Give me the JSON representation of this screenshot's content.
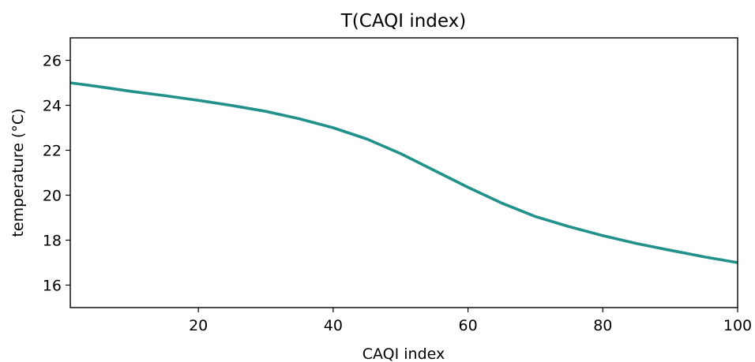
{
  "chart_data": {
    "type": "line",
    "title": "T(CAQI index)",
    "xlabel": "CAQI index",
    "ylabel": "temperature (°C)",
    "xlim": [
      1,
      100
    ],
    "ylim": [
      15,
      27
    ],
    "xticks": [
      20,
      40,
      60,
      80,
      100
    ],
    "yticks": [
      16,
      18,
      20,
      22,
      24,
      26
    ],
    "grid": false,
    "legend": "none",
    "color": "#23918b",
    "series": [
      {
        "x": [
          1,
          5,
          10,
          15,
          20,
          25,
          30,
          35,
          40,
          45,
          50,
          55,
          60,
          65,
          70,
          75,
          80,
          85,
          90,
          95,
          100
        ],
        "y": [
          25.0,
          24.84,
          24.62,
          24.43,
          24.22,
          23.99,
          23.73,
          23.4,
          23.0,
          22.5,
          21.85,
          21.1,
          20.35,
          19.65,
          19.05,
          18.6,
          18.2,
          17.85,
          17.55,
          17.26,
          17.0
        ]
      }
    ]
  }
}
